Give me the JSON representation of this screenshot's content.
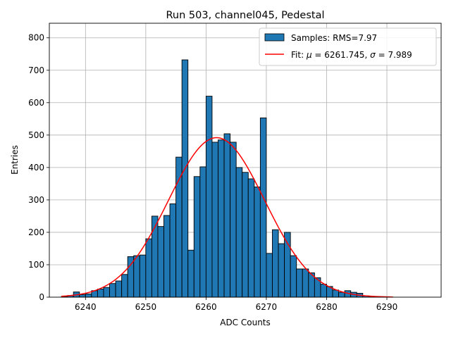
{
  "chart_data": {
    "type": "bar",
    "title": "Run 503, channel045, Pedestal",
    "xlabel": "ADC Counts",
    "ylabel": "Entries",
    "xlim": [
      6234,
      6299
    ],
    "ylim": [
      0,
      845
    ],
    "x_ticks": [
      6240,
      6250,
      6260,
      6270,
      6280,
      6290
    ],
    "y_ticks": [
      0,
      100,
      200,
      300,
      400,
      500,
      600,
      700,
      800
    ],
    "grid": true,
    "legend_position": "top-right",
    "legend": {
      "hist_label": "Samples: RMS=7.97",
      "fit_prefix": "Fit: ",
      "fit_mu_symbol": "μ",
      "fit_mu_text": " = 6261.745, ",
      "fit_sigma_symbol": "σ",
      "fit_sigma_text": " = 7.989"
    },
    "series": [
      {
        "name": "Samples",
        "kind": "histogram",
        "color": "#1f77b4",
        "edge_color": "#000000",
        "bin_start": 6236,
        "bin_width": 1,
        "counts": [
          2,
          5,
          16,
          8,
          10,
          20,
          25,
          30,
          42,
          50,
          70,
          125,
          128,
          130,
          180,
          250,
          218,
          252,
          288,
          432,
          732,
          145,
          372,
          402,
          620,
          478,
          485,
          504,
          478,
          400,
          385,
          365,
          340,
          553,
          135,
          208,
          165,
          200,
          128,
          87,
          87,
          75,
          60,
          40,
          33,
          22,
          15,
          20,
          15,
          12,
          4,
          2,
          2,
          1
        ]
      },
      {
        "name": "Fit",
        "kind": "gaussian",
        "color": "#ff0000",
        "mu": 6261.745,
        "sigma": 7.989,
        "peak": 492,
        "x_range": [
          6236,
          6291
        ]
      }
    ]
  }
}
